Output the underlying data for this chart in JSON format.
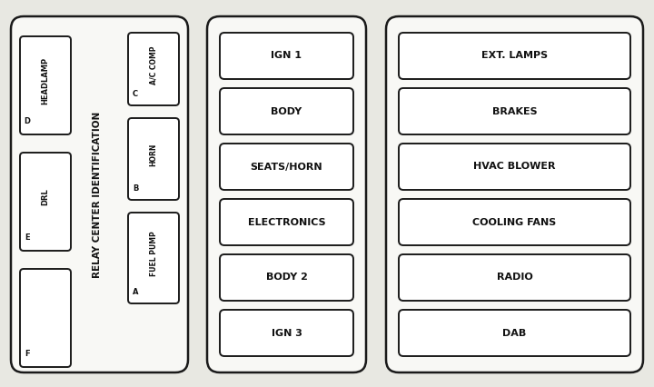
{
  "fig_bg": "#e8e8e2",
  "panel_bg": "#f8f8f5",
  "box_bg": "#ffffff",
  "edge_color": "#1a1a1a",
  "text_color": "#111111",
  "lw_outer": 1.8,
  "lw_inner": 1.4,
  "panel1": {
    "label": "RELAY CENTER IDENTIFICATION",
    "left_fuses": [
      {
        "label": "HEADLAMP",
        "sub": "D"
      },
      {
        "label": "DRL",
        "sub": "E"
      },
      {
        "label": "",
        "sub": "F"
      }
    ],
    "right_fuses": [
      {
        "label": "A/C COMP",
        "sub": "C"
      },
      {
        "label": "HORN",
        "sub": "B"
      },
      {
        "label": "FUEL PUMP",
        "sub": "A"
      }
    ]
  },
  "panel2_fuses": [
    "IGN 1",
    "BODY",
    "SEATS/HORN",
    "ELECTRONICS",
    "BODY 2",
    "IGN 3"
  ],
  "panel3_fuses": [
    "EXT. LAMPS",
    "BRAKES",
    "HVAC BLOWER",
    "COOLING FANS",
    "RADIO",
    "DAB"
  ]
}
